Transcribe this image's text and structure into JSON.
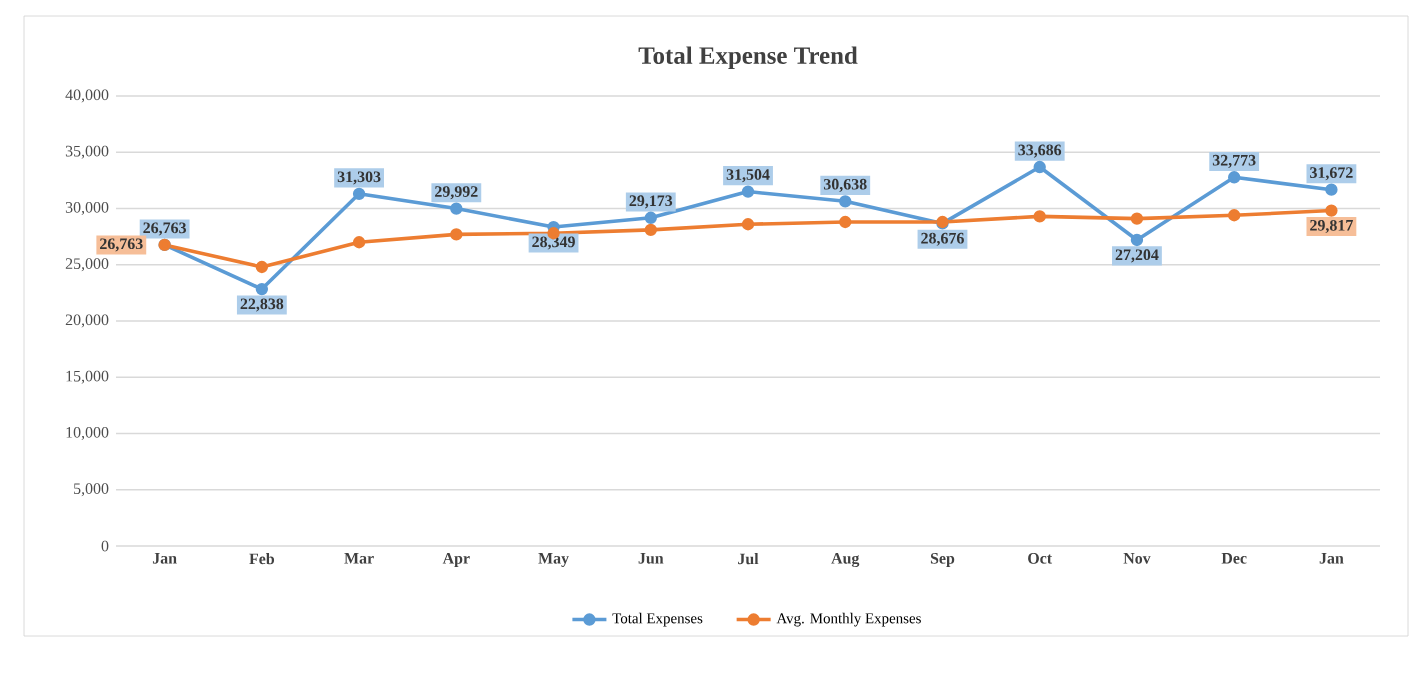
{
  "chart_data": {
    "type": "line",
    "title": "Total Expense Trend",
    "categories": [
      "Jan",
      "Feb",
      "Mar",
      "Apr",
      "May",
      "Jun",
      "Jul",
      "Aug",
      "Sep",
      "Oct",
      "Nov",
      "Dec",
      "Jan"
    ],
    "series": [
      {
        "name": "Total Expenses",
        "color": "#5b9bd5",
        "values": [
          26763,
          22838,
          31303,
          29992,
          28349,
          29173,
          31504,
          30638,
          28676,
          33686,
          27204,
          32773,
          31672
        ],
        "value_labels": [
          "26,763",
          "22,838",
          "31,303",
          "29,992",
          "28,349",
          "29,173",
          "31,504",
          "30,638",
          "28,676",
          "33,686",
          "27,204",
          "32,773",
          "31,672"
        ]
      },
      {
        "name": "Avg. Monthly Expenses",
        "color": "#ed7d31",
        "values": [
          26763,
          24800,
          27000,
          27700,
          27800,
          28100,
          28600,
          28800,
          28800,
          29300,
          29100,
          29400,
          29817
        ],
        "value_labels": [
          "26,763",
          null,
          null,
          null,
          null,
          null,
          null,
          null,
          null,
          null,
          null,
          null,
          "29,817"
        ]
      }
    ],
    "ylim": [
      0,
      40000
    ],
    "yticks": [
      0,
      {
        "value": 5000,
        "label": "5,000"
      },
      {
        "value": 10000,
        "label": "10,000"
      },
      {
        "value": 15000,
        "label": "15,000"
      },
      {
        "value": 20000,
        "label": "20,000"
      },
      {
        "value": 25000,
        "label": "25,000"
      },
      {
        "value": 30000,
        "label": "30,000"
      },
      {
        "value": 35000,
        "label": "35,000"
      },
      {
        "value": 40000,
        "label": "40,000"
      }
    ],
    "grid": "y",
    "legend": "bottom",
    "marker": "circle",
    "line_style": "solid"
  }
}
